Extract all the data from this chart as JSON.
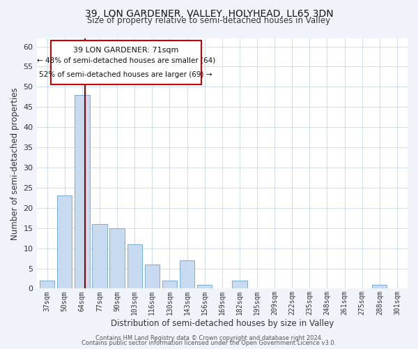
{
  "title": "39, LON GARDENER, VALLEY, HOLYHEAD, LL65 3DN",
  "subtitle": "Size of property relative to semi-detached houses in Valley",
  "xlabel": "Distribution of semi-detached houses by size in Valley",
  "ylabel": "Number of semi-detached properties",
  "bar_color": "#c8daf0",
  "bar_edge_color": "#7aadd4",
  "marker_line_color": "#8b0000",
  "categories": [
    "37sqm",
    "50sqm",
    "64sqm",
    "77sqm",
    "90sqm",
    "103sqm",
    "116sqm",
    "130sqm",
    "143sqm",
    "156sqm",
    "169sqm",
    "182sqm",
    "195sqm",
    "209sqm",
    "222sqm",
    "235sqm",
    "248sqm",
    "261sqm",
    "275sqm",
    "288sqm",
    "301sqm"
  ],
  "values": [
    2,
    23,
    48,
    16,
    15,
    11,
    6,
    2,
    7,
    1,
    0,
    2,
    0,
    0,
    0,
    0,
    0,
    0,
    0,
    1,
    0
  ],
  "marker_bar_index": 2,
  "marker_label": "39 LON GARDENER: 71sqm",
  "annotation_line1": "← 48% of semi-detached houses are smaller (64)",
  "annotation_line2": "52% of semi-detached houses are larger (69) →",
  "ylim": [
    0,
    62
  ],
  "yticks": [
    0,
    5,
    10,
    15,
    20,
    25,
    30,
    35,
    40,
    45,
    50,
    55,
    60
  ],
  "footer_line1": "Contains HM Land Registry data © Crown copyright and database right 2024.",
  "footer_line2": "Contains public sector information licensed under the Open Government Licence v3.0.",
  "bg_color": "#f0f4fa",
  "plot_bg_color": "#ffffff"
}
